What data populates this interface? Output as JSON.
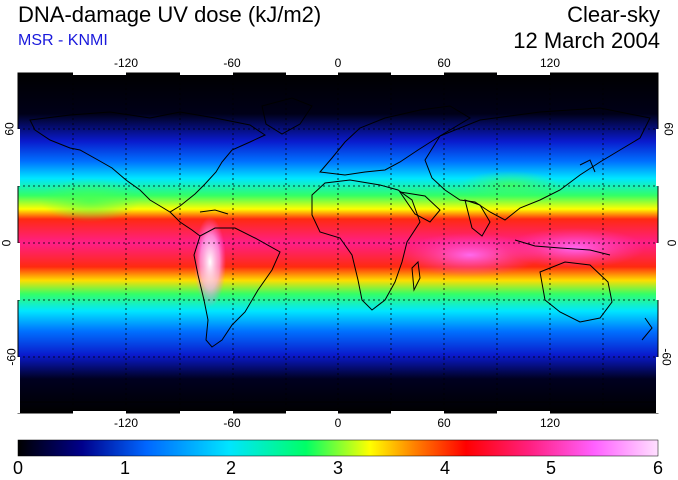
{
  "header": {
    "title": "DNA-damage UV dose (kJ/m2)",
    "subtitle": "MSR - KNMI",
    "condition": "Clear-sky",
    "date": "12 March 2004"
  },
  "map": {
    "projection": "equirectangular",
    "lon_ticks": [
      "-120",
      "-60",
      "0",
      "60",
      "120"
    ],
    "lat_ticks": [
      "60",
      "0",
      "-60"
    ],
    "gridlines": "dashed every 30 degrees"
  },
  "colorbar": {
    "min": 0,
    "max": 6,
    "labels": [
      "0",
      "1",
      "2",
      "3",
      "4",
      "5",
      "6"
    ],
    "colors": [
      "#000000",
      "#00008b",
      "#0066ff",
      "#00e5ff",
      "#00ff66",
      "#ffff00",
      "#ff8000",
      "#ff0000",
      "#ff2080",
      "#ff60ff",
      "#ffd0ff"
    ]
  }
}
